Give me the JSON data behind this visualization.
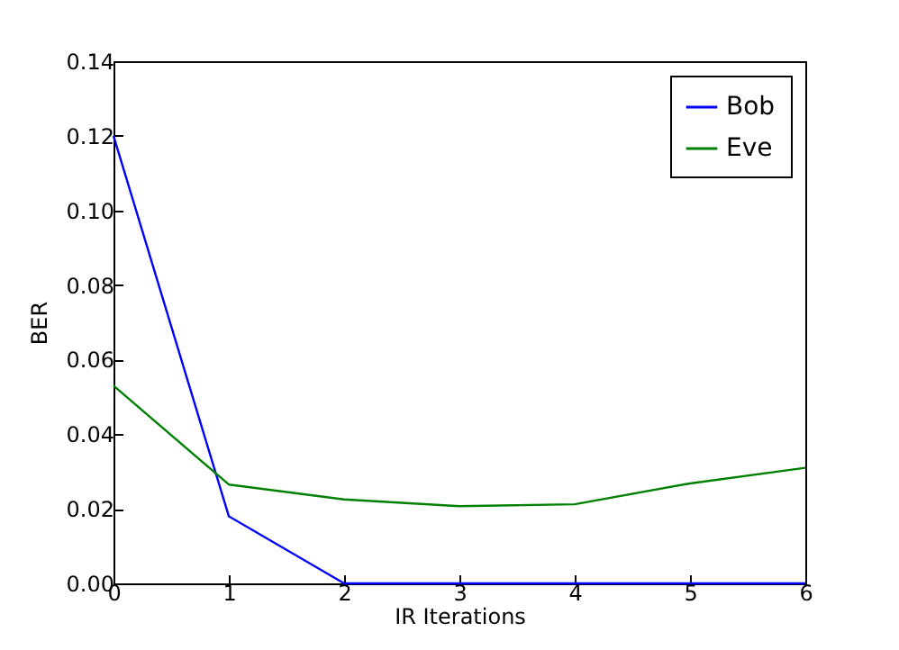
{
  "chart_data": {
    "type": "line",
    "xlabel": "IR Iterations",
    "ylabel": "BER",
    "x": [
      0,
      1,
      2,
      3,
      4,
      5,
      6
    ],
    "series": [
      {
        "name": "Bob",
        "color": "#0000ff",
        "values": [
          0.12,
          0.018,
          0,
          0,
          0,
          0,
          0
        ]
      },
      {
        "name": "Eve",
        "color": "#008000",
        "values": [
          0.053,
          0.0265,
          0.0225,
          0.0207,
          0.0212,
          0.0268,
          0.031
        ]
      }
    ],
    "xlim": [
      0,
      6
    ],
    "xticks": [
      0,
      1,
      2,
      3,
      4,
      5,
      6
    ],
    "ylim": [
      0,
      0.14
    ],
    "yticks": [
      {
        "value": 0,
        "label": "0.00"
      },
      {
        "value": 0.02,
        "label": "0.02"
      },
      {
        "value": 0.04,
        "label": "0.04"
      },
      {
        "value": 0.06,
        "label": "0.06"
      },
      {
        "value": 0.08,
        "label": "0.08"
      },
      {
        "value": 0.1,
        "label": "0.10"
      },
      {
        "value": 0.12,
        "label": "0.12"
      },
      {
        "value": 0.14,
        "label": "0.14"
      }
    ],
    "legend": "top right",
    "grid": false,
    "marker": "none",
    "line_style": "solid"
  }
}
